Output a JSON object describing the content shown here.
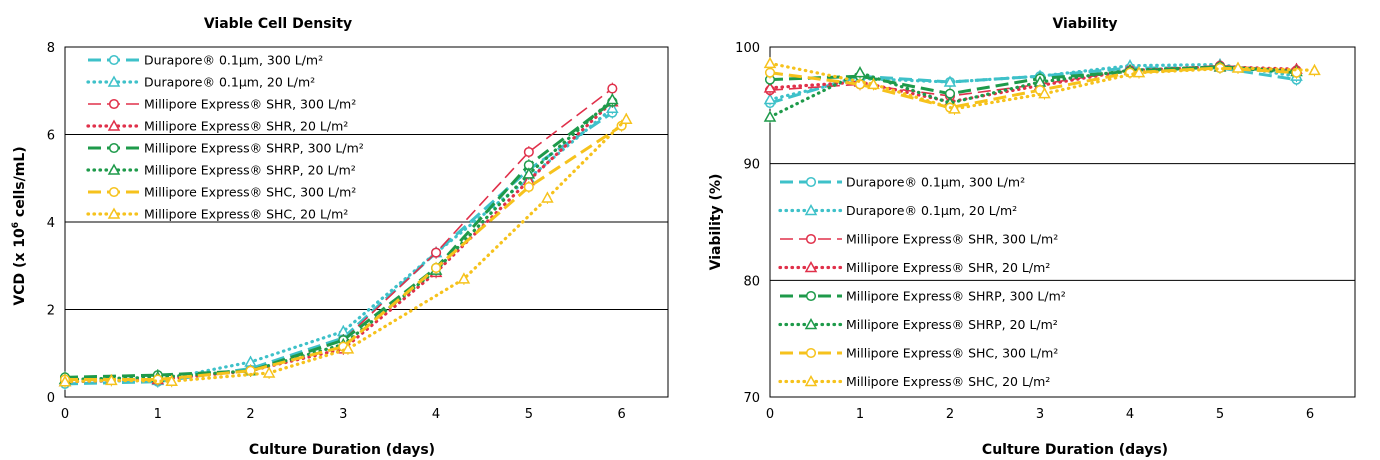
{
  "chart_data": [
    {
      "type": "line",
      "title": "Viable Cell Density",
      "xlabel": "Culture Duration (days)",
      "ylabel_prefix": "VCD  (x 10",
      "ylabel_sup": "6",
      "ylabel_suffix": " cells/mL)",
      "xlim": [
        0,
        6.5
      ],
      "ylim": [
        0,
        8
      ],
      "xticks": [
        0,
        1,
        2,
        3,
        4,
        5,
        6
      ],
      "yticks": [
        0,
        2,
        4,
        6,
        8
      ],
      "gridlines_y": [
        2,
        4,
        6
      ],
      "legend_position": "top-left",
      "series": [
        {
          "name": "Durapore® 0.1µm, 300 L/m²",
          "color": "#3EC1C9",
          "dash": "long",
          "marker": "circle",
          "x": [
            0,
            1,
            2,
            3,
            4,
            5,
            5.9
          ],
          "y": [
            0.3,
            0.35,
            0.65,
            1.35,
            3.3,
            5.2,
            6.5
          ]
        },
        {
          "name": "Durapore® 0.1µm, 20 L/m²",
          "color": "#3EC1C9",
          "dash": "dot",
          "marker": "triangle",
          "x": [
            0,
            1,
            2,
            3,
            4,
            5,
            5.9
          ],
          "y": [
            0.35,
            0.38,
            0.8,
            1.5,
            3.3,
            5.0,
            6.6
          ]
        },
        {
          "name": "Millipore Express® SHR, 300 L/m²",
          "color": "#E0304A",
          "dash": "thin",
          "marker": "circle",
          "x": [
            0,
            1,
            2,
            3,
            4,
            5,
            5.9
          ],
          "y": [
            0.38,
            0.4,
            0.6,
            1.3,
            3.3,
            5.6,
            7.05
          ]
        },
        {
          "name": "Millipore Express® SHR, 20 L/m²",
          "color": "#E0304A",
          "dash": "dot",
          "marker": "triangle",
          "x": [
            0,
            1,
            2,
            3,
            4,
            5,
            5.9
          ],
          "y": [
            0.35,
            0.4,
            0.6,
            1.1,
            2.85,
            4.95,
            6.75
          ]
        },
        {
          "name": "Millipore Express® SHRP, 300 L/m²",
          "color": "#1E9A4A",
          "dash": "long",
          "marker": "circle",
          "x": [
            0,
            1,
            2,
            3,
            4,
            5,
            5.9
          ],
          "y": [
            0.45,
            0.5,
            0.6,
            1.3,
            2.95,
            5.3,
            6.75
          ]
        },
        {
          "name": "Millipore Express® SHRP, 20 L/m²",
          "color": "#1E9A4A",
          "dash": "dot",
          "marker": "triangle",
          "x": [
            0,
            1,
            2,
            3,
            4,
            5,
            5.9
          ],
          "y": [
            0.4,
            0.45,
            0.6,
            1.2,
            2.9,
            5.1,
            6.8
          ]
        },
        {
          "name": "Millipore Express® SHC, 300 L/m²",
          "color": "#F6C21C",
          "dash": "long",
          "marker": "circle",
          "x": [
            0,
            1,
            2,
            3,
            4,
            5,
            6
          ],
          "y": [
            0.4,
            0.4,
            0.6,
            1.15,
            2.95,
            4.8,
            6.2
          ]
        },
        {
          "name": "Millipore Express® SHC, 20 L/m²",
          "color": "#F6C21C",
          "dash": "dot",
          "marker": "triangle",
          "x": [
            0,
            0.5,
            1.15,
            2.2,
            3.05,
            4.3,
            5.2,
            6.05
          ],
          "y": [
            0.35,
            0.38,
            0.36,
            0.55,
            1.1,
            2.7,
            4.55,
            6.35
          ]
        }
      ]
    },
    {
      "type": "line",
      "title": "Viability",
      "xlabel": "Culture Duration (days)",
      "ylabel": "Viability (%)",
      "xlim": [
        0,
        6.5
      ],
      "ylim": [
        70,
        100
      ],
      "xticks": [
        0,
        1,
        2,
        3,
        4,
        5,
        6
      ],
      "yticks": [
        70,
        80,
        90,
        100
      ],
      "gridlines_y": [
        80,
        90
      ],
      "legend_position": "bottom-left",
      "series": [
        {
          "name": "Durapore® 0.1µm, 300 L/m²",
          "color": "#3EC1C9",
          "dash": "long",
          "marker": "circle",
          "x": [
            0,
            1,
            2,
            3,
            4,
            5,
            5.85
          ],
          "y": [
            95.2,
            97.5,
            97.0,
            97.5,
            98.2,
            98.2,
            97.2
          ]
        },
        {
          "name": "Durapore® 0.1µm, 20 L/m²",
          "color": "#3EC1C9",
          "dash": "dot",
          "marker": "triangle",
          "x": [
            0,
            1,
            2,
            3,
            4,
            5,
            5.85
          ],
          "y": [
            95.5,
            97.3,
            97.0,
            97.5,
            98.4,
            98.5,
            97.5
          ]
        },
        {
          "name": "Millipore Express® SHR, 300 L/m²",
          "color": "#E0304A",
          "dash": "thin",
          "marker": "circle",
          "x": [
            0,
            1,
            2,
            3,
            4,
            5,
            5.85
          ],
          "y": [
            96.3,
            96.8,
            95.8,
            96.8,
            98.0,
            98.4,
            98.0
          ]
        },
        {
          "name": "Millipore Express® SHR, 20 L/m²",
          "color": "#E0304A",
          "dash": "dot",
          "marker": "triangle",
          "x": [
            0,
            1,
            2,
            3,
            4,
            5,
            5.85
          ],
          "y": [
            96.5,
            97.0,
            95.3,
            96.7,
            98.0,
            98.3,
            98.1
          ]
        },
        {
          "name": "Millipore Express® SHRP, 300 L/m²",
          "color": "#1E9A4A",
          "dash": "long",
          "marker": "circle",
          "x": [
            0,
            1,
            2,
            3,
            4,
            5,
            5.85
          ],
          "y": [
            97.2,
            97.5,
            96.0,
            97.3,
            97.9,
            98.3,
            97.8
          ]
        },
        {
          "name": "Millipore Express® SHRP, 20 L/m²",
          "color": "#1E9A4A",
          "dash": "dot",
          "marker": "triangle",
          "x": [
            0,
            1,
            2,
            3,
            4,
            5,
            5.85
          ],
          "y": [
            94.0,
            97.8,
            95.2,
            97.0,
            98.0,
            98.3,
            97.9
          ]
        },
        {
          "name": "Millipore Express® SHC, 300 L/m²",
          "color": "#F6C21C",
          "dash": "long",
          "marker": "circle",
          "x": [
            0,
            1,
            2,
            3,
            4,
            5,
            5.85
          ],
          "y": [
            97.8,
            96.8,
            94.8,
            96.3,
            97.8,
            98.2,
            97.8
          ]
        },
        {
          "name": "Millipore Express® SHC, 20 L/m²",
          "color": "#F6C21C",
          "dash": "dot",
          "marker": "triangle",
          "x": [
            0,
            1.15,
            2.05,
            3.05,
            4.1,
            5.2,
            6.05
          ],
          "y": [
            98.6,
            96.8,
            94.7,
            96.0,
            97.8,
            98.2,
            98.0
          ]
        }
      ]
    }
  ]
}
